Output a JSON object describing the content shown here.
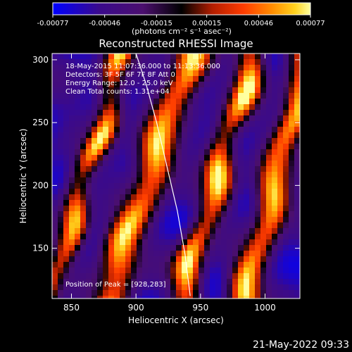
{
  "chart_data": {
    "type": "heatmap",
    "title": "Reconstructed RHESSI Image",
    "xlabel": "Heliocentric X (arcsec)",
    "ylabel": "Heliocentric Y (arcsec)",
    "xlim": [
      835,
      1027
    ],
    "ylim": [
      110,
      305
    ],
    "x_ticks": [
      "850",
      "900",
      "950",
      "1000"
    ],
    "x_tick_values": [
      850,
      900,
      950,
      1000
    ],
    "y_ticks": [
      "150",
      "200",
      "250",
      "300"
    ],
    "y_tick_values": [
      150,
      200,
      250,
      300
    ],
    "colorbar": {
      "ticks": [
        "-0.00077",
        "-0.00046",
        "-0.00015",
        "0.00015",
        "0.00046",
        "0.00077"
      ],
      "tick_values": [
        -0.00077,
        -0.00046,
        -0.00015,
        0.00015,
        0.00046,
        0.00077
      ],
      "range": [
        -0.00077,
        0.00077
      ],
      "units_label": "(photons cm⁻² s⁻¹ asec⁻²)"
    },
    "annotations": [
      "18-May-2015 11:07:36.000 to 11:13:36.000",
      "Detectors: 3F 5F 6F 7F 8F  Att 0",
      "Energy Range: 12.0 - 25.0 keV",
      "Clean    Total counts: 1.31e+04"
    ],
    "position_of_peak": "Position of Peak = [928,283]",
    "limb_curve": {
      "x": [
        900,
        908,
        916,
        924,
        932,
        938,
        942
      ],
      "y": [
        305,
        280,
        250,
        215,
        180,
        145,
        112
      ]
    },
    "stripes": [
      {
        "x_at_bottom": 878,
        "slope_x_per_y": 0.33,
        "width": 14,
        "peak_intensity": 0.00077
      },
      {
        "x_at_bottom": 936,
        "slope_x_per_y": 0.28,
        "width": 11,
        "peak_intensity": 0.0007
      },
      {
        "x_at_bottom": 985,
        "slope_x_per_y": 0.25,
        "width": 12,
        "peak_intensity": 0.00074
      },
      {
        "x_at_bottom": 832,
        "slope_x_per_y": 0.3,
        "width": 10,
        "peak_intensity": 0.0006
      }
    ]
  },
  "footer_timestamp": "21-May-2022 09:33",
  "colors": {
    "background": "#000000",
    "foreground": "#ffffff",
    "colormap": [
      "#0000ff",
      "#3a0a8c",
      "#4b0f6e",
      "#000000",
      "#b41e00",
      "#ff3c00",
      "#ff8c00",
      "#ffd21e",
      "#ffffa0"
    ]
  }
}
